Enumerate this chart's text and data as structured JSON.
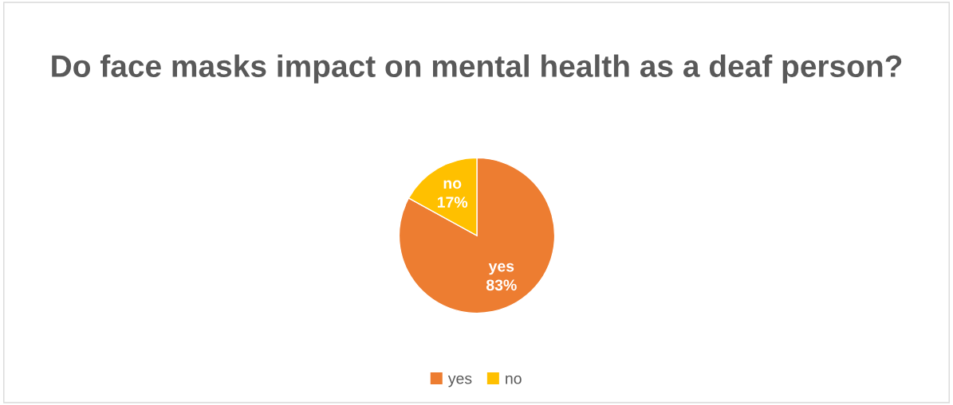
{
  "chart_data": {
    "type": "pie",
    "title": "Do face masks impact on mental health as a deaf person?",
    "categories": [
      "yes",
      "no"
    ],
    "values": [
      83,
      17
    ],
    "value_labels": [
      "83%",
      "17%"
    ],
    "colors": [
      "#ed7d31",
      "#ffc000"
    ],
    "legend": "bottom"
  }
}
